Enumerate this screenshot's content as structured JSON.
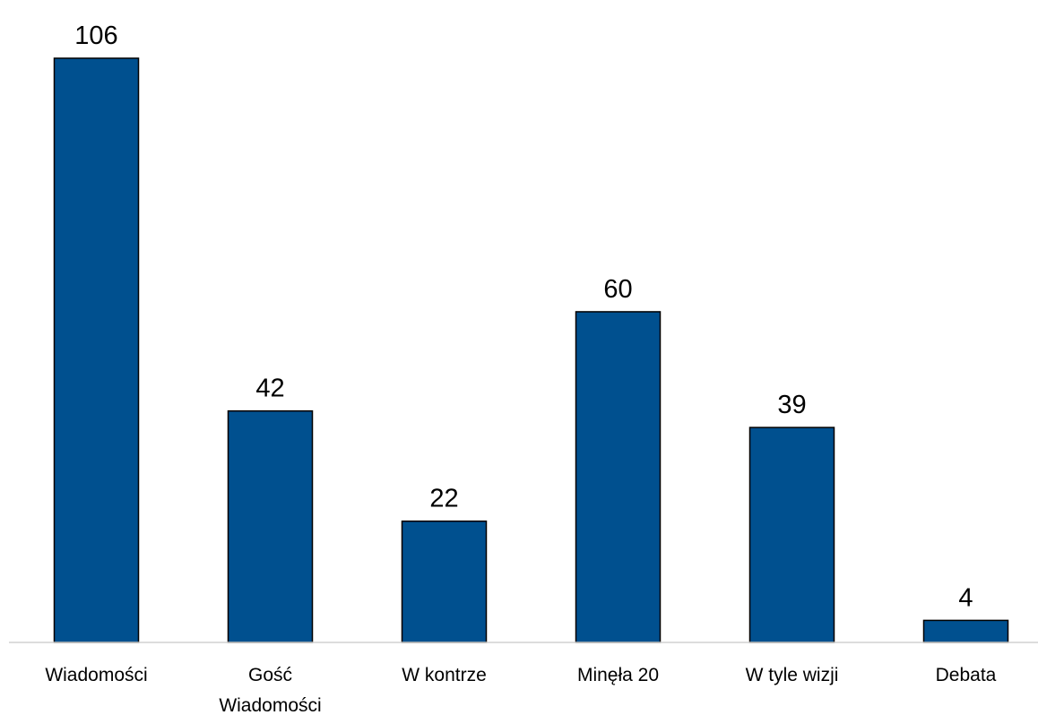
{
  "chart_data": {
    "type": "bar",
    "categories": [
      [
        "Wiadomości"
      ],
      [
        "Gość",
        "Wiadomości"
      ],
      [
        "W kontrze"
      ],
      [
        "Minęła 20"
      ],
      [
        "W tyle wizji"
      ],
      [
        "Debata"
      ]
    ],
    "values": [
      106,
      42,
      22,
      60,
      39,
      4
    ],
    "ylim": [
      0,
      106
    ],
    "grid": false,
    "legend": "none",
    "data_labels": true,
    "colors": {
      "bar": "#00508F",
      "bar_border": "#000000",
      "axis": "#D0D0D0",
      "text": "#000000"
    }
  }
}
